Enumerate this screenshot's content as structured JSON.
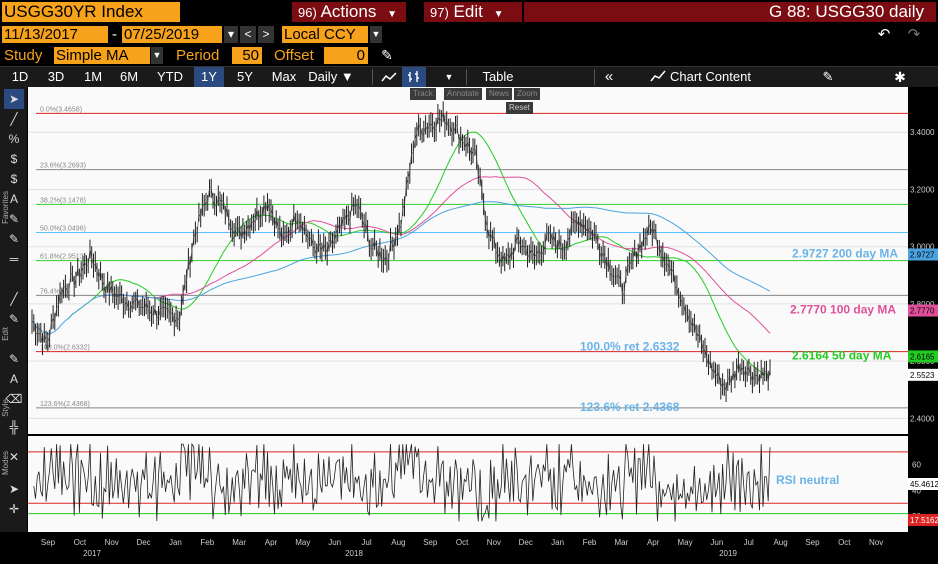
{
  "header": {
    "security": "USGG30YR Index",
    "actions": {
      "num": "96)",
      "label": "Actions"
    },
    "edit": {
      "num": "97)",
      "label": "Edit"
    },
    "chart_id": "G 88: USGG30 daily"
  },
  "range": {
    "start": "11/13/2017",
    "sep": "-",
    "end": "07/25/2019",
    "currency": "Local CCY"
  },
  "study": {
    "study_label": "Study",
    "study_value": "Simple MA",
    "period_label": "Period",
    "period_value": "50",
    "offset_label": "Offset",
    "offset_value": "0"
  },
  "tabs": [
    "1D",
    "3D",
    "1M",
    "6M",
    "YTD",
    "1Y",
    "5Y",
    "Max"
  ],
  "active_tab": "1Y",
  "frequency": "Daily",
  "table_label": "Table",
  "chart_content_label": "Chart Content",
  "zoom_tools": [
    "Track",
    "Annotate",
    "News",
    "Zoom"
  ],
  "reset_label": "Reset",
  "side_labels": [
    "Favorites",
    "Edit",
    "Style",
    "Modes"
  ],
  "colors": {
    "price": "#ffffff",
    "ma50": "#22cc22",
    "ma100": "#e0509a",
    "ma200": "#4aa3df",
    "fib": "#dd2222",
    "fib_green": "#2ecc2e",
    "fib_blue": "#5bc0ff",
    "annotation_blue": "#6ab4e8",
    "rsi": "#ffffff"
  },
  "chart_data": {
    "type": "line",
    "y_ticks": [
      2.4,
      2.6,
      2.8,
      3.0,
      3.2,
      3.4
    ],
    "y_tick_labels": [
      "2.4000",
      "2.6000",
      "2.8000",
      "3.0000",
      "3.2000",
      "3.4000"
    ],
    "ylim": [
      2.37,
      3.53
    ],
    "x_month_labels": [
      "Sep",
      "Oct",
      "Nov",
      "Dec",
      "Jan",
      "Feb",
      "Mar",
      "Apr",
      "May",
      "Jun",
      "Jul",
      "Aug",
      "Sep",
      "Oct",
      "Nov",
      "Dec",
      "Jan",
      "Feb",
      "Mar",
      "Apr",
      "May",
      "Jun",
      "Jul",
      "Aug",
      "Sep",
      "Oct",
      "Nov"
    ],
    "x_year_labels": [
      "2017",
      "2018",
      "2019"
    ],
    "price_series": {
      "name": "USGG30YR",
      "t": [
        0,
        0.02,
        0.04,
        0.06,
        0.08,
        0.1,
        0.12,
        0.14,
        0.16,
        0.18,
        0.2,
        0.22,
        0.24,
        0.26,
        0.28,
        0.3,
        0.32,
        0.34,
        0.36,
        0.38,
        0.4,
        0.42,
        0.44,
        0.46,
        0.48,
        0.5,
        0.52,
        0.54,
        0.56,
        0.58,
        0.6,
        0.62,
        0.64,
        0.66,
        0.68,
        0.7,
        0.72,
        0.74,
        0.76,
        0.78,
        0.8,
        0.82,
        0.84,
        0.86,
        0.88,
        0.9,
        0.92,
        0.94,
        0.96,
        0.98,
        1.0
      ],
      "values": [
        2.74,
        2.66,
        2.85,
        2.89,
        2.97,
        2.86,
        2.82,
        2.8,
        2.78,
        2.76,
        2.76,
        3.04,
        3.19,
        3.14,
        3.04,
        3.1,
        3.16,
        3.02,
        3.12,
        3.0,
        2.98,
        3.07,
        3.15,
        3.0,
        2.96,
        3.08,
        3.4,
        3.43,
        3.45,
        3.39,
        3.32,
        3.04,
        2.94,
        3.02,
        2.96,
        3.03,
        3.0,
        3.1,
        3.05,
        2.95,
        2.85,
        2.99,
        3.07,
        2.95,
        2.83,
        2.7,
        2.58,
        2.51,
        2.59,
        2.55,
        2.55
      ]
    },
    "series": [
      {
        "name": "200 day MA",
        "value_label": "2.9727",
        "last": 2.9727
      },
      {
        "name": "100 day MA",
        "value_label": "2.7770",
        "last": 2.777
      },
      {
        "name": "50 day MA",
        "value_label": "2.6164",
        "last": 2.6164
      }
    ],
    "fib_levels": [
      {
        "label": "0.0%(3.4658)",
        "value": 3.4658,
        "color": "#dd2222"
      },
      {
        "label": "23.6%(3.2693)",
        "value": 3.2693,
        "color": "#888888"
      },
      {
        "label": "38.2%(3.1478)",
        "value": 3.1478,
        "color": "#2ecc2e"
      },
      {
        "label": "50.0%(3.0496)",
        "value": 3.0496,
        "color": "#5bc0ff"
      },
      {
        "label": "61.8%(2.9513)",
        "value": 2.9513,
        "color": "#2ecc2e"
      },
      {
        "label": "76.4%",
        "value": 2.8298,
        "color": "#888888"
      },
      {
        "label": "100.0%(2.6332)",
        "value": 2.6332,
        "color": "#dd2222"
      },
      {
        "label": "123.6%(2.4368)",
        "value": 2.4368,
        "color": "#888888"
      }
    ],
    "annotations": [
      {
        "text": "2.9727 200 day MA",
        "color": "#6ab4e8"
      },
      {
        "text": "2.7770 100 day MA",
        "color": "#e0509a"
      },
      {
        "text": "2.6164 50 day  MA",
        "color": "#22cc22"
      },
      {
        "text": "100.0% ret 2.6332",
        "color": "#6ab4e8"
      },
      {
        "text": "123.6% ret 2.4368",
        "color": "#6ab4e8"
      },
      {
        "text": "RSI neutral",
        "color": "#6ab4e8"
      }
    ],
    "right_tags": [
      {
        "text": "2.9727",
        "color": "#4aa3df",
        "value": 2.9727
      },
      {
        "text": "2.7770",
        "color": "#e0509a",
        "value": 2.777
      },
      {
        "text": "2.6165",
        "color": "#22cc22",
        "value": 2.6165
      },
      {
        "text": "2.5523",
        "color": "#ffffff",
        "value": 2.5523
      }
    ],
    "rsi": {
      "ylim": [
        10,
        80
      ],
      "ticks": [
        20,
        40,
        60
      ],
      "tick_labels": [
        "20",
        "40",
        "60"
      ],
      "last_label": "45.4612",
      "lower_tag": "17.5162",
      "levels": [
        70,
        30
      ]
    }
  }
}
